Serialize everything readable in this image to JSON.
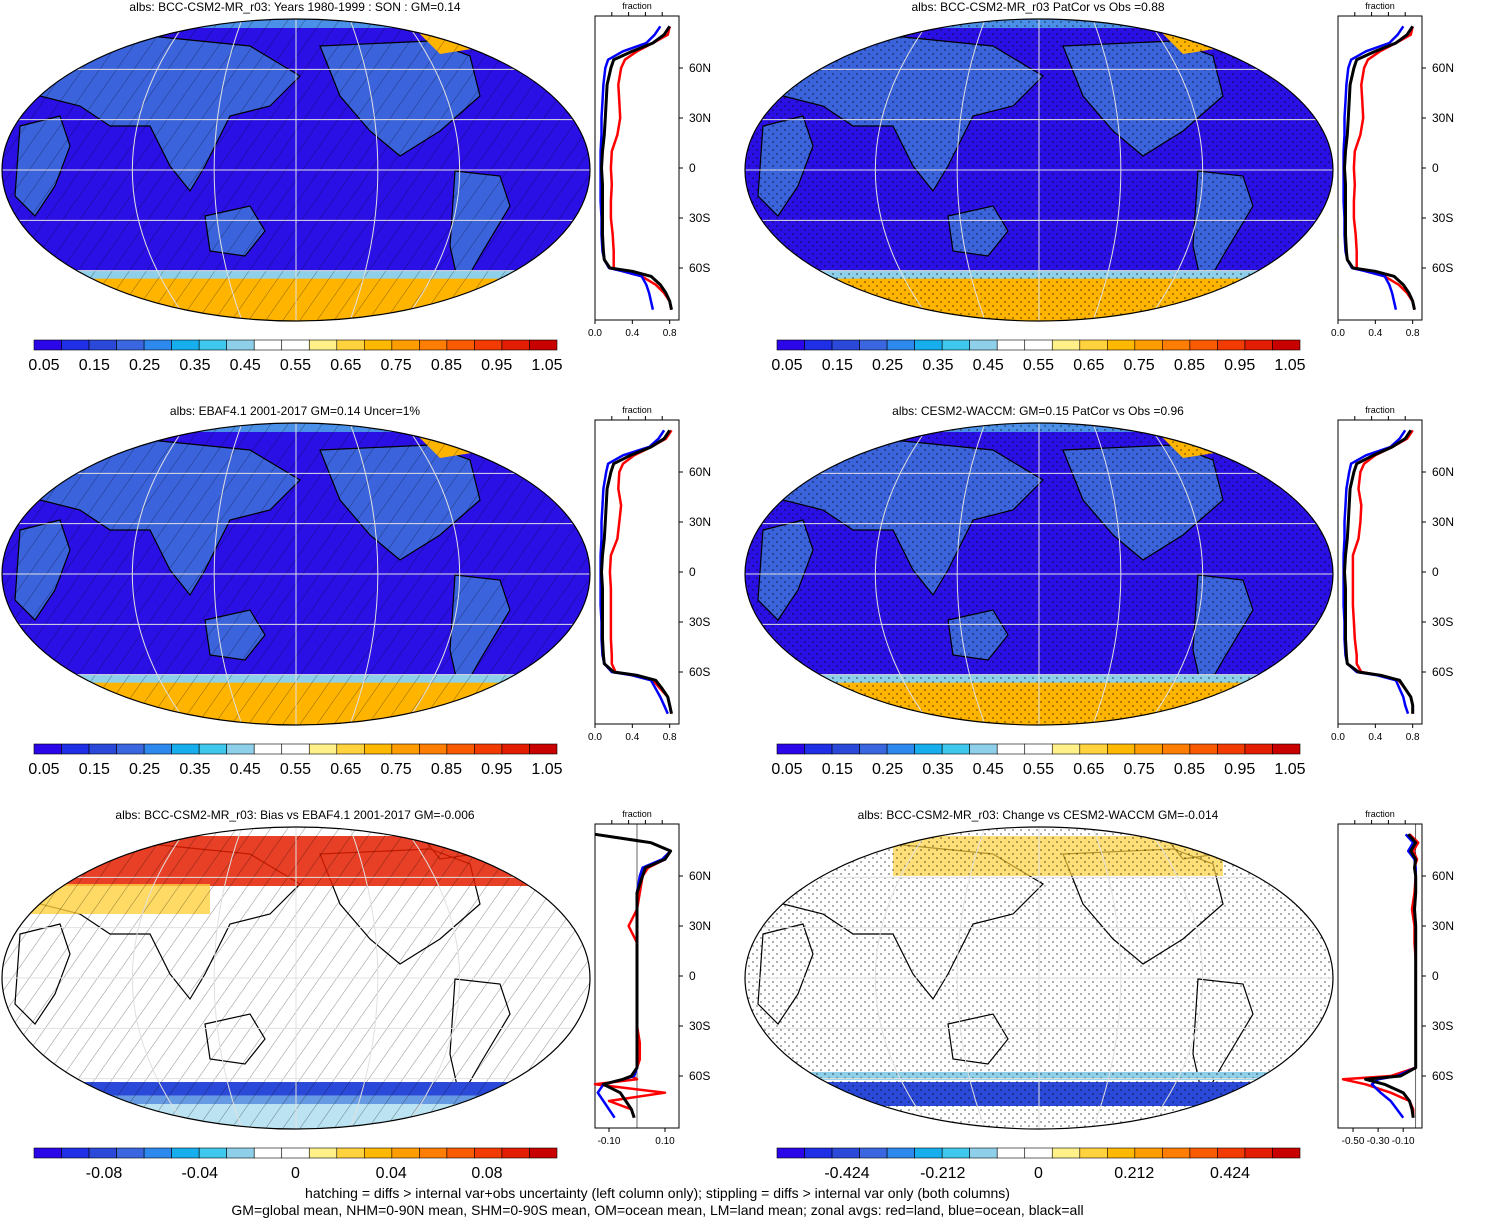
{
  "panels": [
    {
      "id": "model-left",
      "title": "albs: BCC-CSM2-MR_r03: Years 1980-1999 : SON : GM=0.14",
      "map_style": "model",
      "overlay": "hatch",
      "colorbar_labels": [
        "0.05",
        "0.15",
        "0.25",
        "0.35",
        "0.45",
        "0.55",
        "0.65",
        "0.75",
        "0.85",
        "0.95",
        "1.05"
      ],
      "colorbar_colors": [
        "#2b06e8",
        "#1e2fe6",
        "#2b49d8",
        "#3a67e0",
        "#2e89ee",
        "#17aeee",
        "#3fc8ee",
        "#8ed0ea",
        "#ffffff",
        "#ffffff",
        "#fff08a",
        "#ffd23e",
        "#ffb800",
        "#ff9c00",
        "#ff7d00",
        "#fa5a00",
        "#f23b00",
        "#e31e00",
        "#c80000"
      ],
      "profile": {
        "xlabel": "fraction",
        "xticks": [
          "0.0",
          "0.4",
          "0.8"
        ],
        "xmin": 0.0,
        "xmax": 0.9,
        "yticks": [
          "60N",
          "30N",
          "0",
          "30S",
          "60S"
        ]
      }
    },
    {
      "id": "model-right",
      "title": "albs: BCC-CSM2-MR_r03 PatCor vs Obs =0.88",
      "map_style": "model",
      "overlay": "stipple",
      "colorbar_labels": [
        "0.05",
        "0.15",
        "0.25",
        "0.35",
        "0.45",
        "0.55",
        "0.65",
        "0.75",
        "0.85",
        "0.95",
        "1.05"
      ],
      "colorbar_colors": [
        "#2b06e8",
        "#1e2fe6",
        "#2b49d8",
        "#3a67e0",
        "#2e89ee",
        "#17aeee",
        "#3fc8ee",
        "#8ed0ea",
        "#ffffff",
        "#ffffff",
        "#fff08a",
        "#ffd23e",
        "#ffb800",
        "#ff9c00",
        "#ff7d00",
        "#fa5a00",
        "#f23b00",
        "#e31e00",
        "#c80000"
      ],
      "profile": {
        "xlabel": "fraction",
        "xticks": [
          "0.0",
          "0.4",
          "0.8"
        ],
        "xmin": 0.0,
        "xmax": 0.9,
        "yticks": [
          "60N",
          "30N",
          "0",
          "30S",
          "60S"
        ]
      }
    },
    {
      "id": "obs-left",
      "title": "albs: EBAF4.1 2001-2017 GM=0.14 Uncer=1%",
      "map_style": "model",
      "overlay": "hatch",
      "colorbar_labels": [
        "0.05",
        "0.15",
        "0.25",
        "0.35",
        "0.45",
        "0.55",
        "0.65",
        "0.75",
        "0.85",
        "0.95",
        "1.05"
      ],
      "colorbar_colors": [
        "#2b06e8",
        "#1e2fe6",
        "#2b49d8",
        "#3a67e0",
        "#2e89ee",
        "#17aeee",
        "#3fc8ee",
        "#8ed0ea",
        "#ffffff",
        "#ffffff",
        "#fff08a",
        "#ffd23e",
        "#ffb800",
        "#ff9c00",
        "#ff7d00",
        "#fa5a00",
        "#f23b00",
        "#e31e00",
        "#c80000"
      ],
      "profile": {
        "xlabel": "fraction",
        "xticks": [
          "0.0",
          "0.4",
          "0.8"
        ],
        "xmin": 0.0,
        "xmax": 0.9,
        "yticks": [
          "60N",
          "30N",
          "0",
          "30S",
          "60S"
        ]
      }
    },
    {
      "id": "obs-right",
      "title": "albs: CESM2-WACCM: GM=0.15 PatCor vs Obs =0.96",
      "map_style": "model",
      "overlay": "stipple",
      "colorbar_labels": [
        "0.05",
        "0.15",
        "0.25",
        "0.35",
        "0.45",
        "0.55",
        "0.65",
        "0.75",
        "0.85",
        "0.95",
        "1.05"
      ],
      "colorbar_colors": [
        "#2b06e8",
        "#1e2fe6",
        "#2b49d8",
        "#3a67e0",
        "#2e89ee",
        "#17aeee",
        "#3fc8ee",
        "#8ed0ea",
        "#ffffff",
        "#ffffff",
        "#fff08a",
        "#ffd23e",
        "#ffb800",
        "#ff9c00",
        "#ff7d00",
        "#fa5a00",
        "#f23b00",
        "#e31e00",
        "#c80000"
      ],
      "profile": {
        "xlabel": "fraction",
        "xticks": [
          "0.0",
          "0.4",
          "0.8"
        ],
        "xmin": 0.0,
        "xmax": 0.9,
        "yticks": [
          "60N",
          "30N",
          "0",
          "30S",
          "60S"
        ]
      }
    },
    {
      "id": "bias-left",
      "title": "albs: BCC-CSM2-MR_r03: Bias vs EBAF4.1 2001-2017  GM=-0.006",
      "map_style": "bias",
      "overlay": "hatch",
      "colorbar_labels": [
        "-0.08",
        "-0.04",
        "0",
        "0.04",
        "0.08"
      ],
      "colorbar_colors": [
        "#2b06e8",
        "#1e2fe6",
        "#2b49d8",
        "#3a67e0",
        "#2e89ee",
        "#17aeee",
        "#3fc8ee",
        "#8ed0ea",
        "#ffffff",
        "#ffffff",
        "#fff08a",
        "#ffd23e",
        "#ffb800",
        "#ff9c00",
        "#ff7d00",
        "#fa5a00",
        "#f23b00",
        "#e31e00",
        "#c80000"
      ],
      "profile": {
        "xlabel": "fraction",
        "xticks": [
          "-0.10",
          "0.10"
        ],
        "xmin": -0.15,
        "xmax": 0.15,
        "yticks": [
          "60N",
          "30N",
          "0",
          "30S",
          "60S"
        ]
      }
    },
    {
      "id": "change-right",
      "title": "albs: BCC-CSM2-MR_r03: Change vs CESM2-WACCM GM=-0.014",
      "map_style": "change",
      "overlay": "stipple",
      "colorbar_labels": [
        "-0.424",
        "-0.212",
        "0",
        "0.212",
        "0.424"
      ],
      "colorbar_colors": [
        "#2b06e8",
        "#1e2fe6",
        "#2b49d8",
        "#3a67e0",
        "#2e89ee",
        "#17aeee",
        "#3fc8ee",
        "#8ed0ea",
        "#ffffff",
        "#ffffff",
        "#fff08a",
        "#ffd23e",
        "#ffb800",
        "#ff9c00",
        "#ff7d00",
        "#fa5a00",
        "#f23b00",
        "#e31e00",
        "#c80000"
      ],
      "profile": {
        "xlabel": "fraction",
        "xticks": [
          "-0.50",
          "-0.30",
          "-0.10"
        ],
        "xmin": -0.62,
        "xmax": 0.05,
        "yticks": [
          "60N",
          "30N",
          "0",
          "30S",
          "60S"
        ]
      }
    }
  ],
  "footnotes": [
    "hatching = diffs > internal var+obs uncertainty (left column only); stippling = diffs > internal var only (both columns)",
    "GM=global mean, NHM=0-90N mean, SHM=0-90S mean, OM=ocean mean, LM=land mean; zonal avgs: red=land, blue=ocean, black=all"
  ],
  "colors": {
    "land_line": "#ff0000",
    "ocean_line": "#0000ff",
    "all_line": "#000000",
    "ocean_fill": "#2b10e6",
    "land_fill": "#3b64dc",
    "ice_fill": "#ffb400"
  },
  "chart_data": [
    {
      "type": "line",
      "panel": "model-left",
      "title": "albs: BCC-CSM2-MR_r03: Years 1980-1999 : SON : GM=0.14",
      "xlabel": "fraction",
      "xlim": [
        0.0,
        0.9
      ],
      "ylim": [
        -90,
        90
      ],
      "lat": [
        85,
        80,
        75,
        70,
        65,
        60,
        50,
        40,
        30,
        20,
        10,
        0,
        -10,
        -20,
        -30,
        -40,
        -50,
        -55,
        -60,
        -62,
        -65,
        -70,
        -75,
        -80,
        -85
      ],
      "series": [
        {
          "name": "land",
          "values": [
            0.8,
            0.78,
            0.62,
            0.45,
            0.32,
            0.28,
            0.25,
            0.26,
            0.27,
            0.24,
            0.18,
            0.17,
            0.18,
            0.17,
            0.17,
            0.19,
            0.2,
            0.2,
            0.2,
            0.3,
            0.5,
            0.65,
            0.74,
            0.8,
            0.82
          ]
        },
        {
          "name": "ocean",
          "values": [
            0.7,
            0.64,
            0.55,
            0.3,
            0.14,
            0.11,
            0.09,
            0.08,
            0.07,
            0.07,
            0.06,
            0.06,
            0.06,
            0.06,
            0.07,
            0.07,
            0.08,
            0.1,
            0.15,
            0.3,
            0.5,
            0.55,
            0.58,
            0.6,
            0.62
          ]
        },
        {
          "name": "all",
          "values": [
            0.8,
            0.74,
            0.62,
            0.4,
            0.2,
            0.17,
            0.13,
            0.12,
            0.11,
            0.1,
            0.08,
            0.07,
            0.08,
            0.08,
            0.08,
            0.08,
            0.09,
            0.1,
            0.16,
            0.4,
            0.6,
            0.7,
            0.76,
            0.8,
            0.82
          ]
        }
      ]
    },
    {
      "type": "line",
      "panel": "model-right",
      "title": "albs: BCC-CSM2-MR_r03 PatCor vs Obs =0.88",
      "xlabel": "fraction",
      "xlim": [
        0.0,
        0.9
      ],
      "ylim": [
        -90,
        90
      ],
      "lat": [
        85,
        80,
        75,
        70,
        65,
        60,
        50,
        40,
        30,
        20,
        10,
        0,
        -10,
        -20,
        -30,
        -40,
        -50,
        -55,
        -60,
        -62,
        -65,
        -70,
        -75,
        -80,
        -85
      ],
      "series": [
        {
          "name": "land",
          "values": [
            0.8,
            0.78,
            0.62,
            0.45,
            0.32,
            0.28,
            0.25,
            0.26,
            0.27,
            0.24,
            0.18,
            0.17,
            0.18,
            0.17,
            0.17,
            0.19,
            0.2,
            0.2,
            0.2,
            0.3,
            0.5,
            0.65,
            0.74,
            0.8,
            0.82
          ]
        },
        {
          "name": "ocean",
          "values": [
            0.7,
            0.64,
            0.55,
            0.3,
            0.14,
            0.11,
            0.09,
            0.08,
            0.07,
            0.07,
            0.06,
            0.06,
            0.06,
            0.06,
            0.07,
            0.07,
            0.08,
            0.1,
            0.15,
            0.3,
            0.5,
            0.55,
            0.58,
            0.6,
            0.62
          ]
        },
        {
          "name": "all",
          "values": [
            0.8,
            0.74,
            0.62,
            0.4,
            0.2,
            0.17,
            0.13,
            0.12,
            0.11,
            0.1,
            0.08,
            0.07,
            0.08,
            0.08,
            0.08,
            0.08,
            0.09,
            0.1,
            0.16,
            0.4,
            0.6,
            0.7,
            0.76,
            0.8,
            0.82
          ]
        }
      ]
    },
    {
      "type": "line",
      "panel": "obs-left",
      "title": "albs: EBAF4.1 2001-2017 GM=0.14 Uncer=1%",
      "xlabel": "fraction",
      "xlim": [
        0.0,
        0.9
      ],
      "ylim": [
        -90,
        90
      ],
      "lat": [
        85,
        80,
        75,
        70,
        65,
        60,
        50,
        40,
        30,
        20,
        10,
        0,
        -10,
        -20,
        -30,
        -40,
        -50,
        -55,
        -60,
        -62,
        -65,
        -70,
        -75,
        -80,
        -85
      ],
      "series": [
        {
          "name": "land",
          "values": [
            0.82,
            0.76,
            0.6,
            0.42,
            0.3,
            0.26,
            0.25,
            0.28,
            0.26,
            0.24,
            0.17,
            0.16,
            0.17,
            0.17,
            0.17,
            0.17,
            0.18,
            0.18,
            0.22,
            0.4,
            0.62,
            0.7,
            0.78,
            0.8,
            0.82
          ]
        },
        {
          "name": "ocean",
          "values": [
            0.74,
            0.68,
            0.58,
            0.3,
            0.14,
            0.12,
            0.09,
            0.08,
            0.07,
            0.07,
            0.06,
            0.06,
            0.06,
            0.06,
            0.07,
            0.07,
            0.08,
            0.1,
            0.18,
            0.4,
            0.6,
            0.65,
            0.7,
            0.74,
            0.78
          ]
        },
        {
          "name": "all",
          "values": [
            0.8,
            0.74,
            0.6,
            0.38,
            0.2,
            0.17,
            0.13,
            0.12,
            0.11,
            0.1,
            0.08,
            0.07,
            0.08,
            0.08,
            0.08,
            0.08,
            0.09,
            0.1,
            0.2,
            0.45,
            0.65,
            0.72,
            0.78,
            0.8,
            0.82
          ]
        }
      ]
    },
    {
      "type": "line",
      "panel": "obs-right",
      "title": "albs: CESM2-WACCM: GM=0.15 PatCor vs Obs =0.96",
      "xlabel": "fraction",
      "xlim": [
        0.0,
        0.9
      ],
      "ylim": [
        -90,
        90
      ],
      "lat": [
        85,
        80,
        75,
        70,
        65,
        60,
        50,
        40,
        30,
        20,
        10,
        0,
        -10,
        -20,
        -30,
        -40,
        -50,
        -55,
        -60,
        -62,
        -65,
        -70,
        -75,
        -80,
        -85
      ],
      "series": [
        {
          "name": "land",
          "values": [
            0.8,
            0.74,
            0.58,
            0.4,
            0.28,
            0.24,
            0.22,
            0.25,
            0.24,
            0.22,
            0.16,
            0.16,
            0.16,
            0.16,
            0.17,
            0.18,
            0.2,
            0.2,
            0.25,
            0.45,
            0.65,
            0.72,
            0.78,
            0.8,
            0.8
          ]
        },
        {
          "name": "ocean",
          "values": [
            0.72,
            0.66,
            0.56,
            0.3,
            0.14,
            0.12,
            0.09,
            0.08,
            0.07,
            0.07,
            0.06,
            0.06,
            0.06,
            0.06,
            0.07,
            0.07,
            0.08,
            0.1,
            0.2,
            0.42,
            0.62,
            0.66,
            0.7,
            0.72,
            0.75
          ]
        },
        {
          "name": "all",
          "values": [
            0.78,
            0.72,
            0.58,
            0.38,
            0.2,
            0.17,
            0.13,
            0.12,
            0.11,
            0.1,
            0.08,
            0.07,
            0.08,
            0.08,
            0.08,
            0.08,
            0.09,
            0.1,
            0.22,
            0.46,
            0.66,
            0.72,
            0.78,
            0.8,
            0.8
          ]
        }
      ]
    },
    {
      "type": "line",
      "panel": "bias-left",
      "title": "albs: BCC-CSM2-MR_r03: Bias vs EBAF4.1 2001-2017  GM=-0.006",
      "xlabel": "fraction",
      "xlim": [
        -0.15,
        0.15
      ],
      "ylim": [
        -90,
        90
      ],
      "lat": [
        85,
        80,
        75,
        70,
        65,
        60,
        50,
        40,
        30,
        20,
        10,
        0,
        -10,
        -20,
        -30,
        -40,
        -50,
        -55,
        -60,
        -62,
        -65,
        -70,
        -75,
        -80,
        -85
      ],
      "series": [
        {
          "name": "land",
          "values": [
            -0.15,
            0.05,
            0.12,
            0.1,
            0.04,
            0.02,
            0.01,
            0.0,
            -0.03,
            0.0,
            0.0,
            0.0,
            0.0,
            0.0,
            0.0,
            0.01,
            0.01,
            0.0,
            -0.02,
            0.0,
            -0.15,
            0.1,
            -0.1,
            -0.02,
            -0.01
          ]
        },
        {
          "name": "ocean",
          "values": [
            -0.15,
            0.05,
            0.12,
            0.09,
            0.02,
            0.01,
            0.0,
            0.0,
            0.0,
            0.0,
            0.0,
            0.0,
            0.0,
            0.0,
            0.0,
            0.0,
            0.0,
            0.0,
            -0.01,
            -0.05,
            -0.12,
            -0.14,
            -0.12,
            -0.1,
            -0.08
          ]
        },
        {
          "name": "all",
          "values": [
            -0.15,
            0.05,
            0.12,
            0.1,
            0.03,
            0.02,
            0.0,
            0.0,
            0.0,
            0.0,
            0.0,
            0.0,
            0.0,
            0.0,
            0.0,
            0.0,
            0.0,
            0.0,
            -0.02,
            -0.05,
            -0.12,
            -0.06,
            -0.04,
            -0.02,
            -0.01
          ]
        }
      ]
    },
    {
      "type": "line",
      "panel": "change-right",
      "title": "albs: BCC-CSM2-MR_r03: Change vs CESM2-WACCM GM=-0.014",
      "xlabel": "fraction",
      "xlim": [
        -0.62,
        0.05
      ],
      "ylim": [
        -90,
        90
      ],
      "lat": [
        85,
        80,
        75,
        70,
        65,
        60,
        50,
        40,
        30,
        20,
        10,
        0,
        -10,
        -20,
        -30,
        -40,
        -50,
        -55,
        -60,
        -62,
        -65,
        -70,
        -75,
        -80,
        -85
      ],
      "series": [
        {
          "name": "land",
          "values": [
            -0.05,
            0.02,
            -0.02,
            0.01,
            -0.01,
            0.0,
            -0.01,
            -0.03,
            -0.01,
            -0.01,
            0.0,
            0.0,
            0.0,
            0.0,
            0.0,
            0.0,
            0.0,
            0.0,
            -0.2,
            -0.58,
            -0.4,
            -0.2,
            -0.05,
            -0.02,
            -0.02
          ]
        },
        {
          "name": "ocean",
          "values": [
            -0.08,
            -0.02,
            -0.06,
            -0.01,
            0.0,
            0.0,
            0.0,
            -0.01,
            0.0,
            0.0,
            0.0,
            0.0,
            0.0,
            0.0,
            0.0,
            0.0,
            0.0,
            0.0,
            -0.15,
            -0.3,
            -0.35,
            -0.28,
            -0.2,
            -0.15,
            -0.1
          ]
        },
        {
          "name": "all",
          "values": [
            -0.06,
            0.0,
            -0.04,
            0.0,
            -0.01,
            0.0,
            0.0,
            -0.01,
            0.0,
            0.0,
            0.0,
            0.0,
            0.0,
            0.0,
            0.0,
            0.0,
            0.0,
            0.0,
            -0.12,
            -0.4,
            -0.25,
            -0.1,
            -0.05,
            -0.03,
            -0.02
          ]
        }
      ]
    }
  ]
}
